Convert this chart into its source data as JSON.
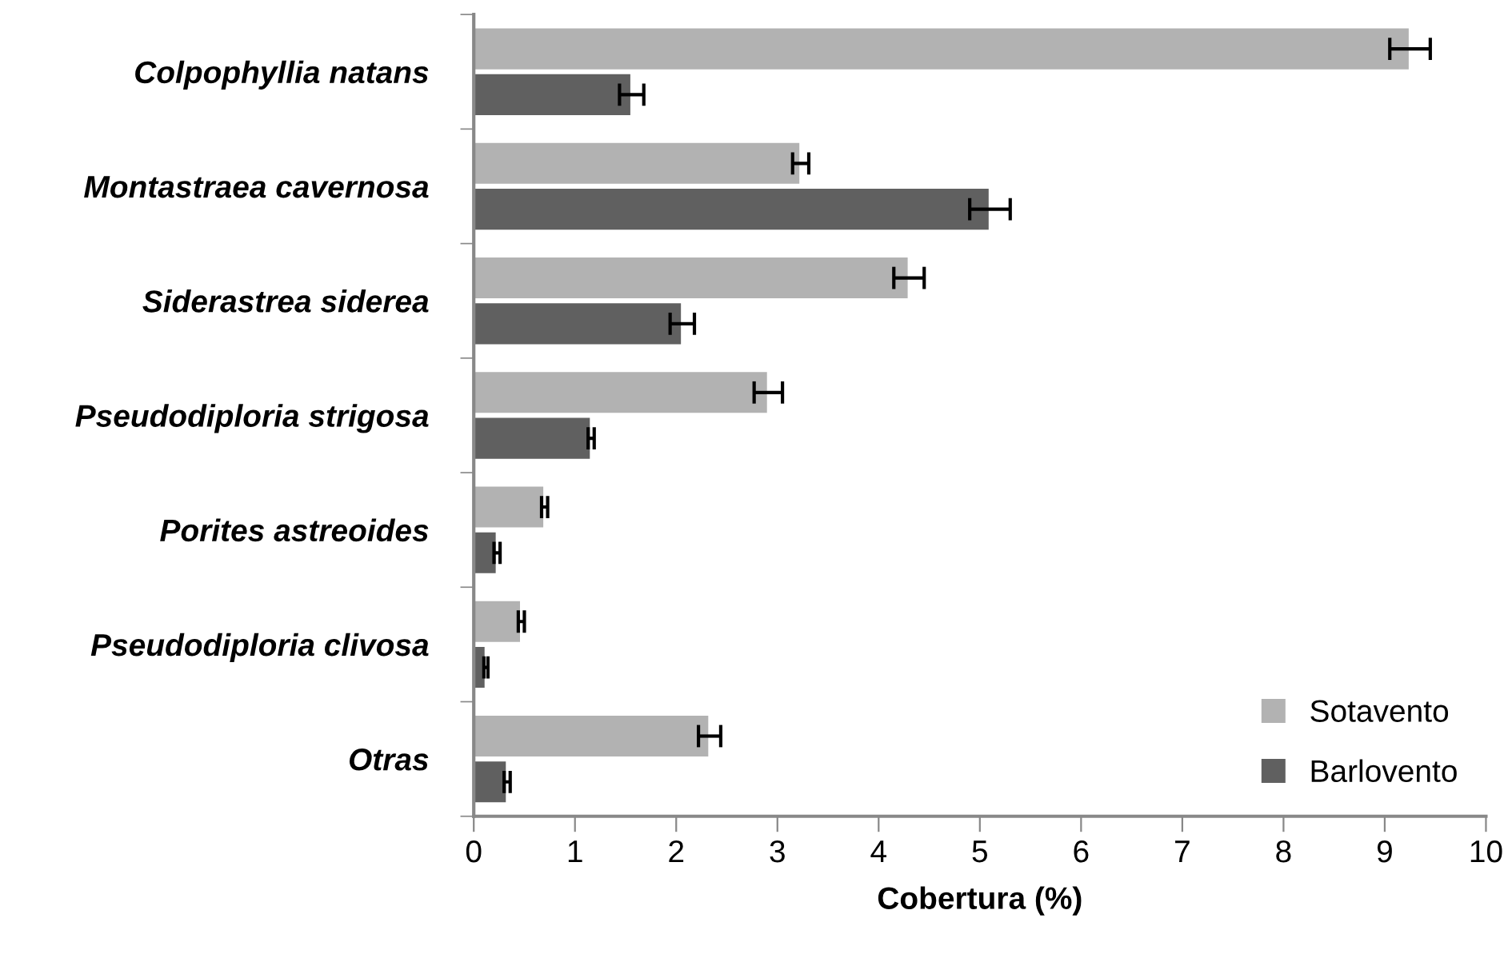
{
  "chart_data": {
    "type": "bar",
    "orientation": "horizontal",
    "categories": [
      "Colpophyllia natans",
      "Montastraea cavernosa",
      "Siderastrea siderea",
      "Pseudodiploria strigosa",
      "Porites astreoides",
      "Pseudodiploria clivosa",
      "Otras"
    ],
    "series": [
      {
        "name": "Sotavento",
        "color": "#b2b2b2",
        "values": [
          9.25,
          3.23,
          4.3,
          2.91,
          0.7,
          0.47,
          2.33
        ],
        "errors": [
          0.2,
          0.08,
          0.15,
          0.14,
          0.03,
          0.03,
          0.11
        ]
      },
      {
        "name": "Barlovento",
        "color": "#606060",
        "values": [
          1.56,
          5.1,
          2.06,
          1.16,
          0.23,
          0.12,
          0.33
        ],
        "errors": [
          0.12,
          0.2,
          0.12,
          0.03,
          0.03,
          0.02,
          0.03
        ]
      }
    ],
    "xlabel": "Cobertura (%)",
    "xlim": [
      0,
      10
    ],
    "xticks": [
      0,
      1,
      2,
      3,
      4,
      5,
      6,
      7,
      8,
      9,
      10
    ],
    "grid": false,
    "legend": "bottom right"
  }
}
